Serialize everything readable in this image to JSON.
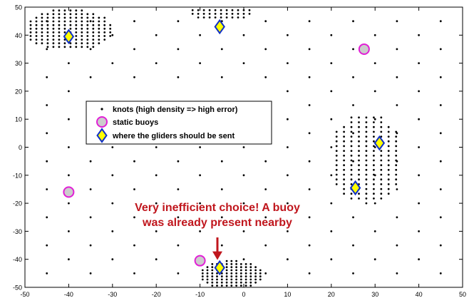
{
  "chart_data": {
    "type": "scatter",
    "xlim": [
      -50,
      50
    ],
    "ylim": [
      -50,
      50
    ],
    "x_ticks": [
      "-50",
      "-40",
      "-30",
      "-20",
      "-10",
      "0",
      "10",
      "20",
      "30",
      "40",
      "50"
    ],
    "y_ticks": [
      "-50",
      "-40",
      "-30",
      "-20",
      "-10",
      "0",
      "10",
      "20",
      "30",
      "40",
      "50"
    ],
    "grid": false,
    "legend_placement": "center-left",
    "legend": [
      {
        "label": "knots (high density => high error)",
        "marker": "dot",
        "color": "#000000"
      },
      {
        "label": "static buoys",
        "marker": "circle",
        "color": "#cccccc",
        "edge": "#e11fd6"
      },
      {
        "label": "where the gliders should be sent",
        "marker": "diamond",
        "color": "#ffff00",
        "edge": "#1030c8"
      }
    ],
    "annotation": {
      "lines": [
        "Very inefficient choice! A buoy",
        "was already present nearby"
      ],
      "color": "#c0161d",
      "arrow_to": [
        -5.5,
        -41
      ]
    },
    "series": [
      {
        "name": "static buoys",
        "points": [
          [
            -40,
            -16
          ],
          [
            27.5,
            35
          ],
          [
            -10,
            -40.5
          ]
        ]
      },
      {
        "name": "where the gliders should be sent",
        "points": [
          [
            -40,
            39.5
          ],
          [
            -5.5,
            43
          ],
          [
            25.5,
            -14.5
          ],
          [
            31,
            1.5
          ],
          [
            -5.5,
            -43
          ]
        ]
      }
    ],
    "knot_clusters": [
      {
        "center": [
          -40,
          42
        ],
        "rx": 10,
        "ry": 7.5,
        "step": 1.3
      },
      {
        "center": [
          -5.5,
          48
        ],
        "rx": 7.5,
        "ry": 3,
        "step": 1.3
      },
      {
        "center": [
          28,
          -4
        ],
        "rx": 8.5,
        "ry": 16,
        "step": 1.7
      },
      {
        "center": [
          -3,
          -45.5
        ],
        "rx": 7.5,
        "ry": 5,
        "step": 1.1
      }
    ],
    "knot_grid_step": 5
  }
}
